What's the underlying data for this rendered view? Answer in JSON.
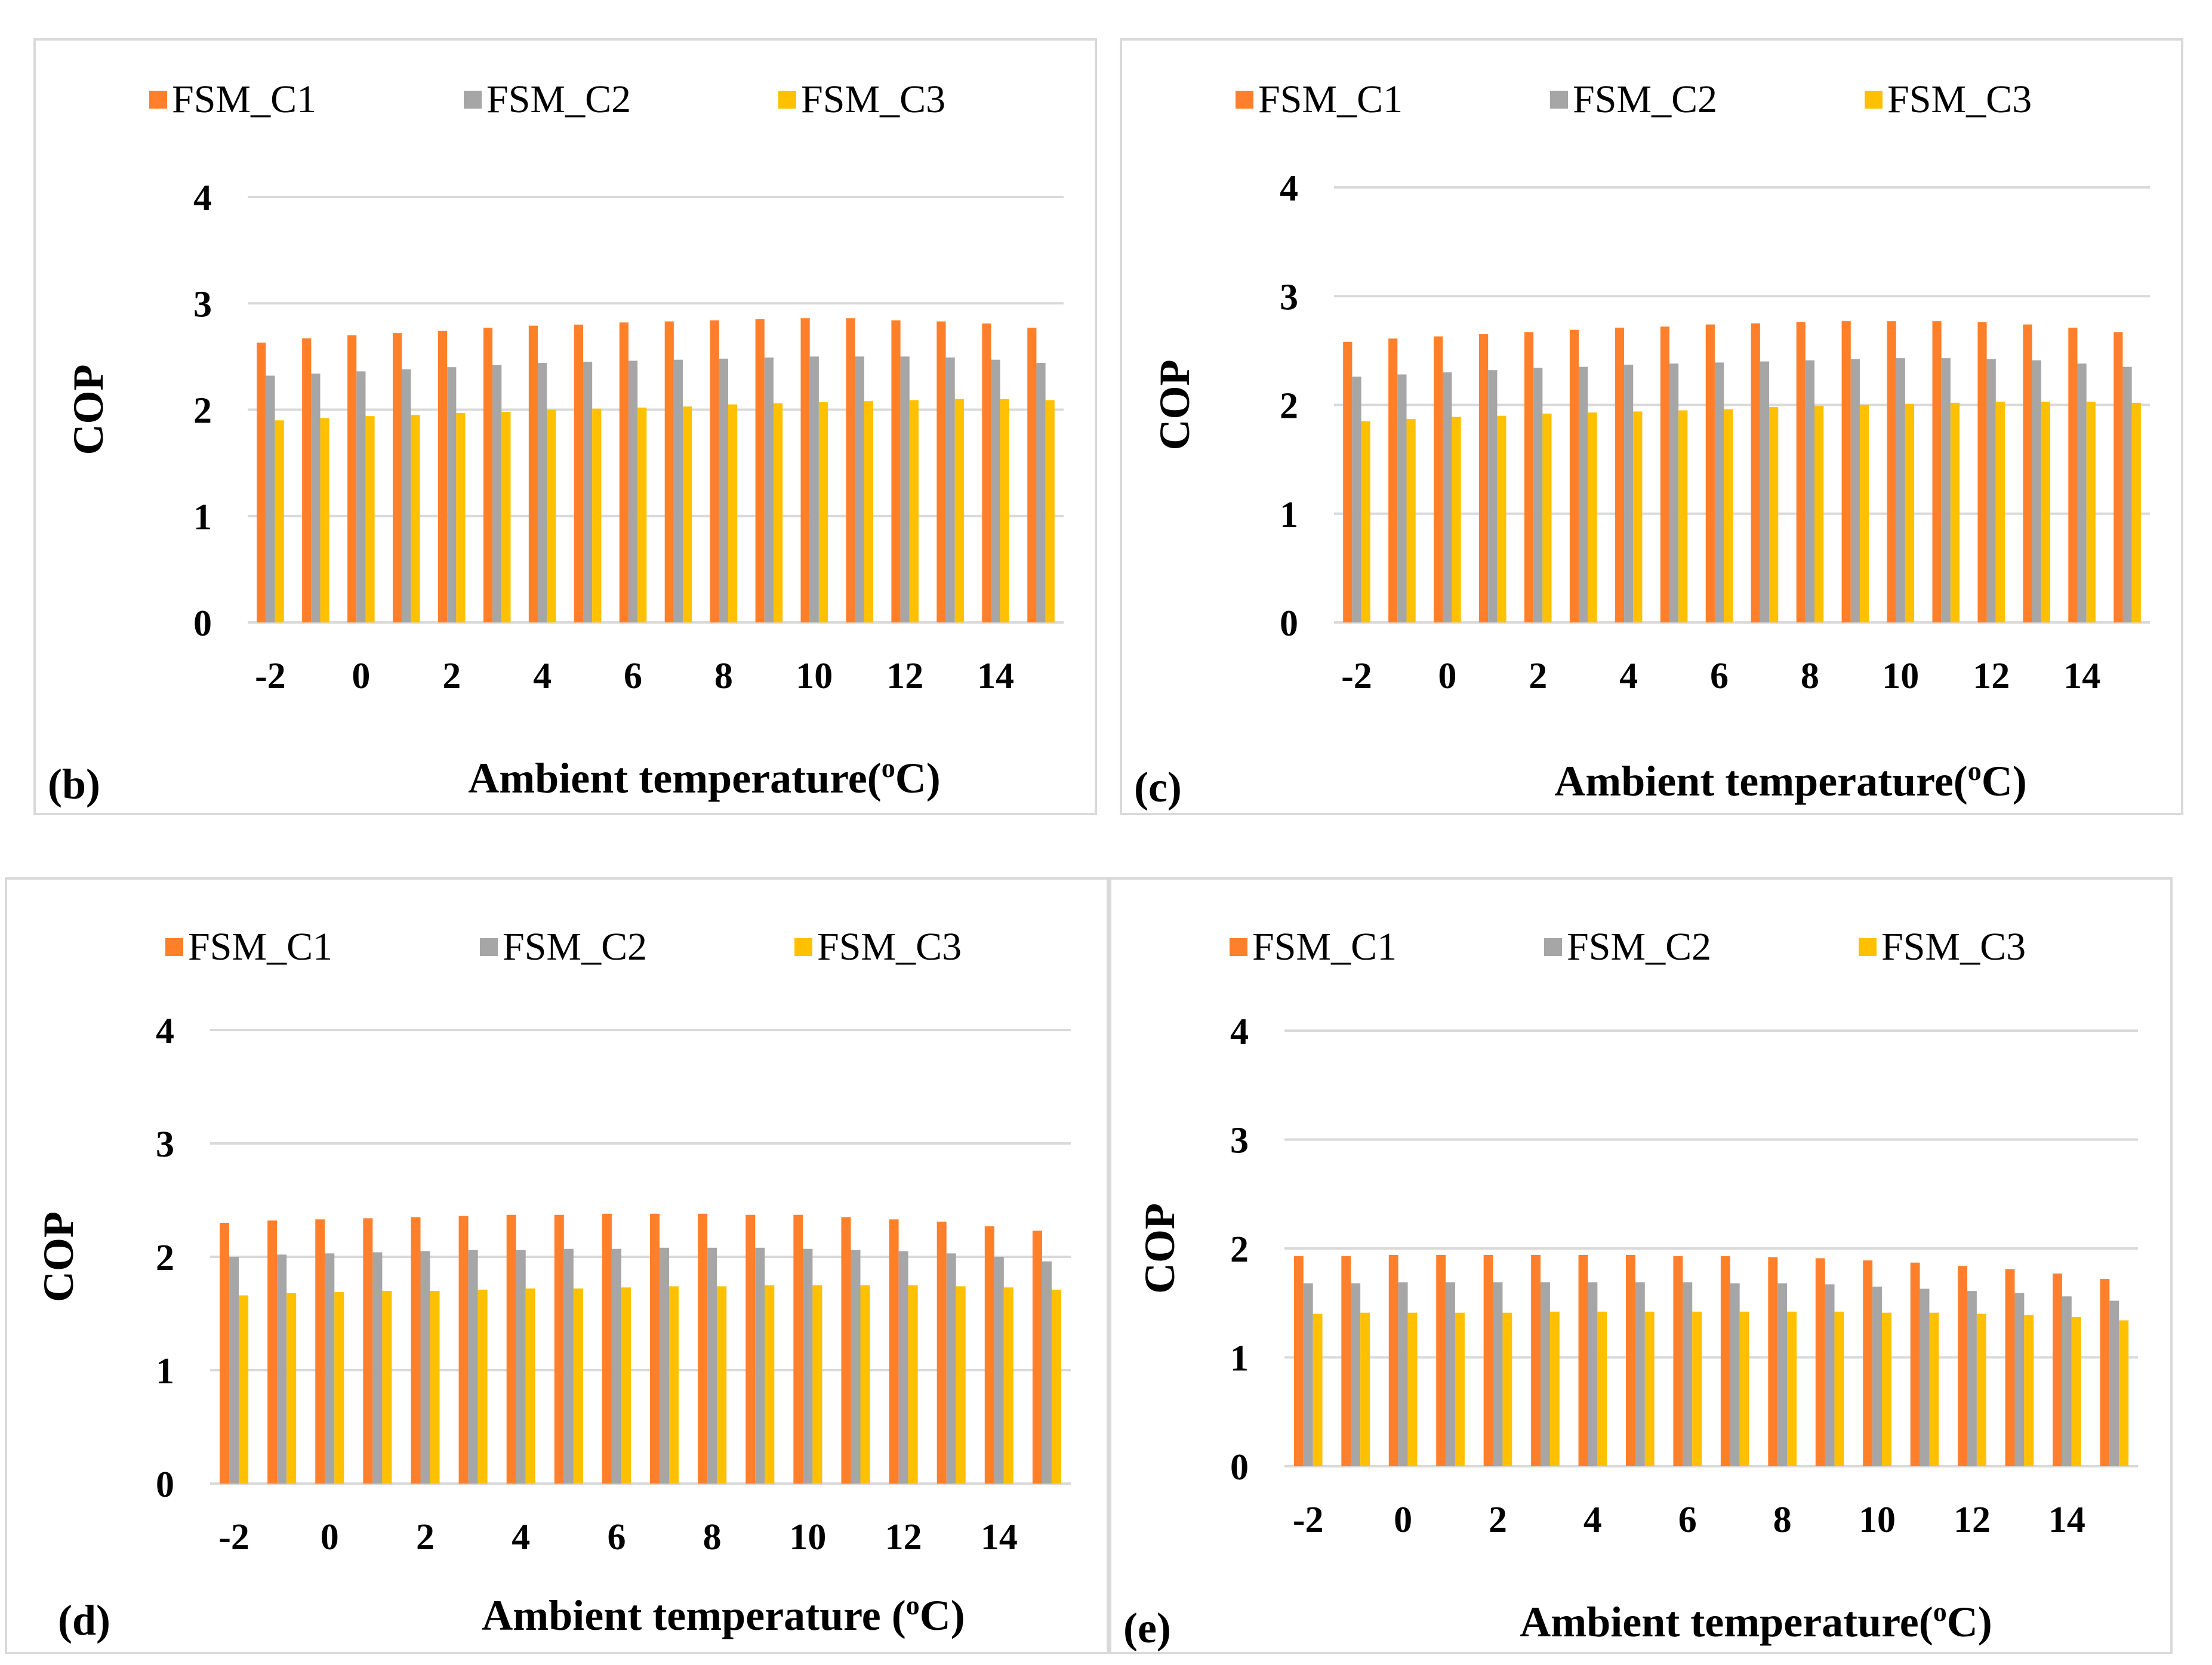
{
  "colors": {
    "FSM_C1": "#ff7f2a",
    "FSM_C2": "#a6a6a6",
    "FSM_C3": "#ffc000",
    "grid": "#d9d9d9"
  },
  "chart_data": [
    {
      "id": "b",
      "type": "bar",
      "label": "(b)",
      "xlabel": "Ambient temperature(",
      "xlabel_sup": "o",
      "xlabel_unit": "C)",
      "ylabel": "COP",
      "ylim": [
        0,
        4
      ],
      "yticks": [
        "0",
        "1",
        "2",
        "3",
        "4"
      ],
      "categories": [
        -2,
        -1,
        0,
        1,
        2,
        3,
        4,
        5,
        6,
        7,
        8,
        9,
        10,
        11,
        12,
        13,
        14,
        15
      ],
      "xtick_labels": [
        "-2",
        "0",
        "2",
        "4",
        "6",
        "8",
        "10",
        "12",
        "14"
      ],
      "legend_position": "top",
      "series": [
        {
          "name": "FSM_C1",
          "values": [
            2.63,
            2.67,
            2.7,
            2.72,
            2.74,
            2.77,
            2.79,
            2.8,
            2.82,
            2.83,
            2.84,
            2.85,
            2.86,
            2.86,
            2.84,
            2.83,
            2.81,
            2.77
          ]
        },
        {
          "name": "FSM_C2",
          "values": [
            2.32,
            2.34,
            2.36,
            2.38,
            2.4,
            2.42,
            2.44,
            2.45,
            2.46,
            2.47,
            2.48,
            2.49,
            2.5,
            2.5,
            2.5,
            2.49,
            2.47,
            2.44
          ]
        },
        {
          "name": "FSM_C3",
          "values": [
            1.9,
            1.92,
            1.94,
            1.95,
            1.97,
            1.98,
            2.0,
            2.01,
            2.02,
            2.03,
            2.05,
            2.06,
            2.07,
            2.08,
            2.09,
            2.1,
            2.1,
            2.09
          ]
        }
      ]
    },
    {
      "id": "c",
      "type": "bar",
      "label": "(c)",
      "xlabel": "Ambient temperature(",
      "xlabel_sup": "o",
      "xlabel_unit": "C)",
      "ylabel": "COP",
      "ylim": [
        0,
        4
      ],
      "yticks": [
        "0",
        "1",
        "2",
        "3",
        "4"
      ],
      "categories": [
        -2,
        -1,
        0,
        1,
        2,
        3,
        4,
        5,
        6,
        7,
        8,
        9,
        10,
        11,
        12,
        13,
        14,
        15
      ],
      "xtick_labels": [
        "-2",
        "0",
        "2",
        "4",
        "6",
        "8",
        "10",
        "12",
        "14"
      ],
      "legend_position": "top",
      "series": [
        {
          "name": "FSM_C1",
          "values": [
            2.58,
            2.61,
            2.63,
            2.65,
            2.67,
            2.69,
            2.71,
            2.72,
            2.74,
            2.75,
            2.76,
            2.77,
            2.77,
            2.77,
            2.76,
            2.74,
            2.71,
            2.67
          ]
        },
        {
          "name": "FSM_C2",
          "values": [
            2.26,
            2.28,
            2.3,
            2.32,
            2.34,
            2.35,
            2.37,
            2.38,
            2.39,
            2.4,
            2.41,
            2.42,
            2.43,
            2.43,
            2.42,
            2.41,
            2.38,
            2.35
          ]
        },
        {
          "name": "FSM_C3",
          "values": [
            1.85,
            1.87,
            1.89,
            1.9,
            1.92,
            1.93,
            1.94,
            1.95,
            1.96,
            1.98,
            1.99,
            2.0,
            2.01,
            2.02,
            2.03,
            2.03,
            2.03,
            2.02
          ]
        }
      ]
    },
    {
      "id": "d",
      "type": "bar",
      "label": "(d)",
      "xlabel": "Ambient temperature (",
      "xlabel_sup": "o",
      "xlabel_unit": "C)",
      "ylabel": "COP",
      "ylim": [
        0,
        4
      ],
      "yticks": [
        "0",
        "1",
        "2",
        "3",
        "4"
      ],
      "categories": [
        -2,
        -1,
        0,
        1,
        2,
        3,
        4,
        5,
        6,
        7,
        8,
        9,
        10,
        11,
        12,
        13,
        14,
        15
      ],
      "xtick_labels": [
        "-2",
        "0",
        "2",
        "4",
        "6",
        "8",
        "10",
        "12",
        "14"
      ],
      "legend_position": "top",
      "series": [
        {
          "name": "FSM_C1",
          "values": [
            2.3,
            2.32,
            2.33,
            2.34,
            2.35,
            2.36,
            2.37,
            2.37,
            2.38,
            2.38,
            2.38,
            2.37,
            2.37,
            2.35,
            2.33,
            2.31,
            2.27,
            2.23
          ]
        },
        {
          "name": "FSM_C2",
          "values": [
            2.0,
            2.02,
            2.03,
            2.04,
            2.05,
            2.06,
            2.06,
            2.07,
            2.07,
            2.08,
            2.08,
            2.08,
            2.07,
            2.06,
            2.05,
            2.03,
            2.0,
            1.96
          ]
        },
        {
          "name": "FSM_C3",
          "values": [
            1.66,
            1.68,
            1.69,
            1.7,
            1.7,
            1.71,
            1.72,
            1.72,
            1.73,
            1.74,
            1.74,
            1.75,
            1.75,
            1.75,
            1.75,
            1.74,
            1.73,
            1.71
          ]
        }
      ]
    },
    {
      "id": "e",
      "type": "bar",
      "label": "(e)",
      "xlabel": "Ambient temperature(",
      "xlabel_sup": "o",
      "xlabel_unit": "C)",
      "ylabel": "COP",
      "ylim": [
        0,
        4
      ],
      "yticks": [
        "0",
        "1",
        "2",
        "3",
        "4"
      ],
      "categories": [
        -2,
        -1,
        0,
        1,
        2,
        3,
        4,
        5,
        6,
        7,
        8,
        9,
        10,
        11,
        12,
        13,
        14,
        15
      ],
      "xtick_labels": [
        "-2",
        "0",
        "2",
        "4",
        "6",
        "8",
        "10",
        "12",
        "14"
      ],
      "legend_position": "top",
      "series": [
        {
          "name": "FSM_C1",
          "values": [
            1.93,
            1.93,
            1.94,
            1.94,
            1.94,
            1.94,
            1.94,
            1.94,
            1.93,
            1.93,
            1.92,
            1.91,
            1.89,
            1.87,
            1.84,
            1.81,
            1.77,
            1.72
          ]
        },
        {
          "name": "FSM_C2",
          "values": [
            1.68,
            1.68,
            1.69,
            1.69,
            1.69,
            1.69,
            1.69,
            1.69,
            1.69,
            1.68,
            1.68,
            1.67,
            1.65,
            1.63,
            1.61,
            1.59,
            1.56,
            1.52
          ]
        },
        {
          "name": "FSM_C3",
          "values": [
            1.4,
            1.41,
            1.41,
            1.41,
            1.41,
            1.42,
            1.42,
            1.42,
            1.42,
            1.42,
            1.42,
            1.42,
            1.41,
            1.41,
            1.4,
            1.39,
            1.37,
            1.34
          ]
        }
      ]
    }
  ]
}
